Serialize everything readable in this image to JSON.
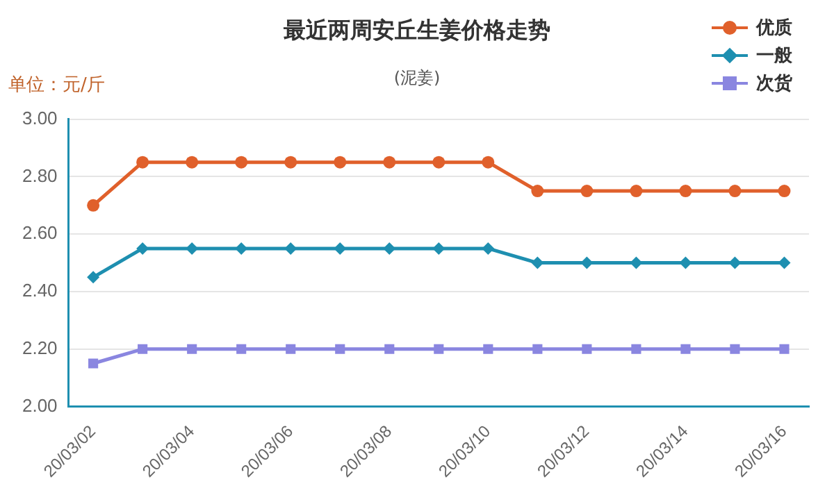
{
  "chart_data": {
    "type": "line",
    "title": "最近两周安丘生姜价格走势",
    "subtitle": "(泥姜)",
    "ylabel": "单位：元/斤",
    "categories": [
      "20/03/02",
      null,
      "20/03/04",
      null,
      "20/03/06",
      null,
      "20/03/08",
      null,
      "20/03/10",
      null,
      "20/03/12",
      null,
      "20/03/14",
      null,
      "20/03/16"
    ],
    "series": [
      {
        "name": "优质",
        "color": "#e0602b",
        "marker": "circle",
        "values": [
          2.7,
          2.85,
          2.85,
          2.85,
          2.85,
          2.85,
          2.85,
          2.85,
          2.85,
          2.75,
          2.75,
          2.75,
          2.75,
          2.75,
          2.75
        ]
      },
      {
        "name": "一般",
        "color": "#1e8fb0",
        "marker": "diamond",
        "values": [
          2.45,
          2.55,
          2.55,
          2.55,
          2.55,
          2.55,
          2.55,
          2.55,
          2.55,
          2.5,
          2.5,
          2.5,
          2.5,
          2.5,
          2.5
        ]
      },
      {
        "name": "次货",
        "color": "#8a86e0",
        "marker": "square",
        "values": [
          2.15,
          2.2,
          2.2,
          2.2,
          2.2,
          2.2,
          2.2,
          2.2,
          2.2,
          2.2,
          2.2,
          2.2,
          2.2,
          2.2,
          2.2
        ]
      }
    ],
    "ylim": [
      2.0,
      3.0
    ],
    "yticks": [
      {
        "value": 2.0,
        "label": "2.00"
      },
      {
        "value": 2.2,
        "label": "2.20"
      },
      {
        "value": 2.4,
        "label": "2.40"
      },
      {
        "value": 2.6,
        "label": "2.60"
      },
      {
        "value": 2.8,
        "label": "2.80"
      },
      {
        "value": 3.0,
        "label": "3.00"
      }
    ],
    "grid": "y",
    "legend": "top right",
    "line_style": "solid"
  }
}
